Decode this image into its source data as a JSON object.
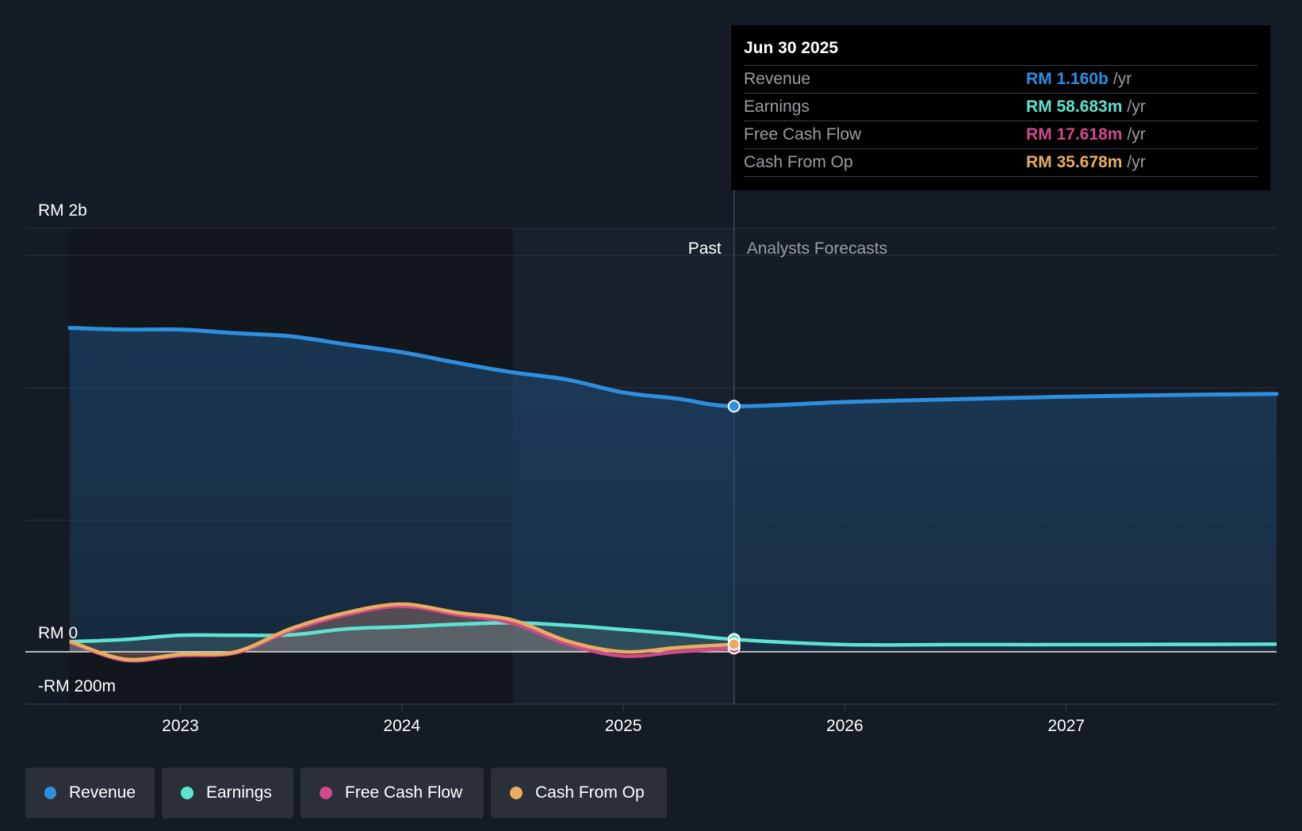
{
  "chart_data": {
    "type": "line",
    "x_unit": "year",
    "ylim_label": [
      "-RM 200m",
      "RM 0",
      "RM 2b"
    ],
    "y_ticks": [
      {
        "value": 2000,
        "label": "RM 2b"
      },
      {
        "value": 0,
        "label": "RM 0"
      },
      {
        "value": -200,
        "label": "-RM 200m"
      }
    ],
    "y_unit": "RM m",
    "ylim": [
      -200,
      1600
    ],
    "xlim": [
      2022.3,
      2027.95
    ],
    "x_ticks": [
      {
        "value": 2023,
        "label": "2023"
      },
      {
        "value": 2024,
        "label": "2024"
      },
      {
        "value": 2025,
        "label": "2025"
      },
      {
        "value": 2026,
        "label": "2026"
      },
      {
        "value": 2027,
        "label": "2027"
      }
    ],
    "past_label": "Past",
    "forecast_label": "Analysts Forecasts",
    "past_end_x": 2025.5,
    "highlight_start_x": 2024.5,
    "series": [
      {
        "name": "Revenue",
        "color": "#2d8fe0",
        "x": [
          2022.5,
          2022.75,
          2023.0,
          2023.25,
          2023.5,
          2023.75,
          2024.0,
          2024.25,
          2024.5,
          2024.75,
          2025.0,
          2025.25,
          2025.5
        ],
        "y": [
          1530,
          1522,
          1522,
          1505,
          1490,
          1452,
          1415,
          1365,
          1320,
          1285,
          1225,
          1195,
          1160
        ],
        "forecast_x": [
          2025.5,
          2026.0,
          2026.5,
          2027.0,
          2027.5,
          2027.95
        ],
        "forecast_y": [
          1160,
          1180,
          1193,
          1205,
          1213,
          1218
        ]
      },
      {
        "name": "Earnings",
        "color": "#5ee3d3",
        "x": [
          2022.5,
          2022.75,
          2023.0,
          2023.25,
          2023.5,
          2023.75,
          2024.0,
          2024.25,
          2024.5,
          2024.75,
          2025.0,
          2025.25,
          2025.5
        ],
        "y": [
          48,
          58,
          78,
          78,
          80,
          108,
          118,
          130,
          137,
          125,
          105,
          84,
          58.683
        ],
        "forecast_x": [
          2025.5,
          2026.0,
          2026.5,
          2027.0,
          2027.5,
          2027.95
        ],
        "forecast_y": [
          58.683,
          34,
          34,
          34,
          35,
          36
        ]
      },
      {
        "name": "Free Cash Flow",
        "color": "#d0498d",
        "x": [
          2022.5,
          2022.75,
          2023.0,
          2023.25,
          2023.5,
          2023.75,
          2024.0,
          2024.25,
          2024.5,
          2024.75,
          2025.0,
          2025.25,
          2025.5
        ],
        "y": [
          45,
          -40,
          -18,
          -5,
          100,
          175,
          215,
          175,
          135,
          35,
          -20,
          0,
          17.618
        ]
      },
      {
        "name": "Cash From Op",
        "color": "#e9ad60",
        "x": [
          2022.5,
          2022.75,
          2023.0,
          2023.25,
          2023.5,
          2023.75,
          2024.0,
          2024.25,
          2024.5,
          2024.75,
          2025.0,
          2025.25,
          2025.5
        ],
        "y": [
          50,
          -35,
          -12,
          0,
          110,
          185,
          225,
          185,
          150,
          50,
          0,
          20,
          35.678
        ]
      }
    ]
  },
  "tooltip": {
    "date": "Jun 30 2025",
    "unit": "/yr",
    "rows": [
      {
        "label": "Revenue",
        "value": "RM 1.160b",
        "color": "#2d8fe0"
      },
      {
        "label": "Earnings",
        "value": "RM 58.683m",
        "color": "#5ee3d3"
      },
      {
        "label": "Free Cash Flow",
        "value": "RM 17.618m",
        "color": "#d0498d"
      },
      {
        "label": "Cash From Op",
        "value": "RM 35.678m",
        "color": "#e9ad60"
      }
    ]
  },
  "legend": [
    {
      "label": "Revenue",
      "color": "#2d8fe0"
    },
    {
      "label": "Earnings",
      "color": "#5ee3d3"
    },
    {
      "label": "Free Cash Flow",
      "color": "#d0498d"
    },
    {
      "label": "Cash From Op",
      "color": "#e9ad60"
    }
  ]
}
